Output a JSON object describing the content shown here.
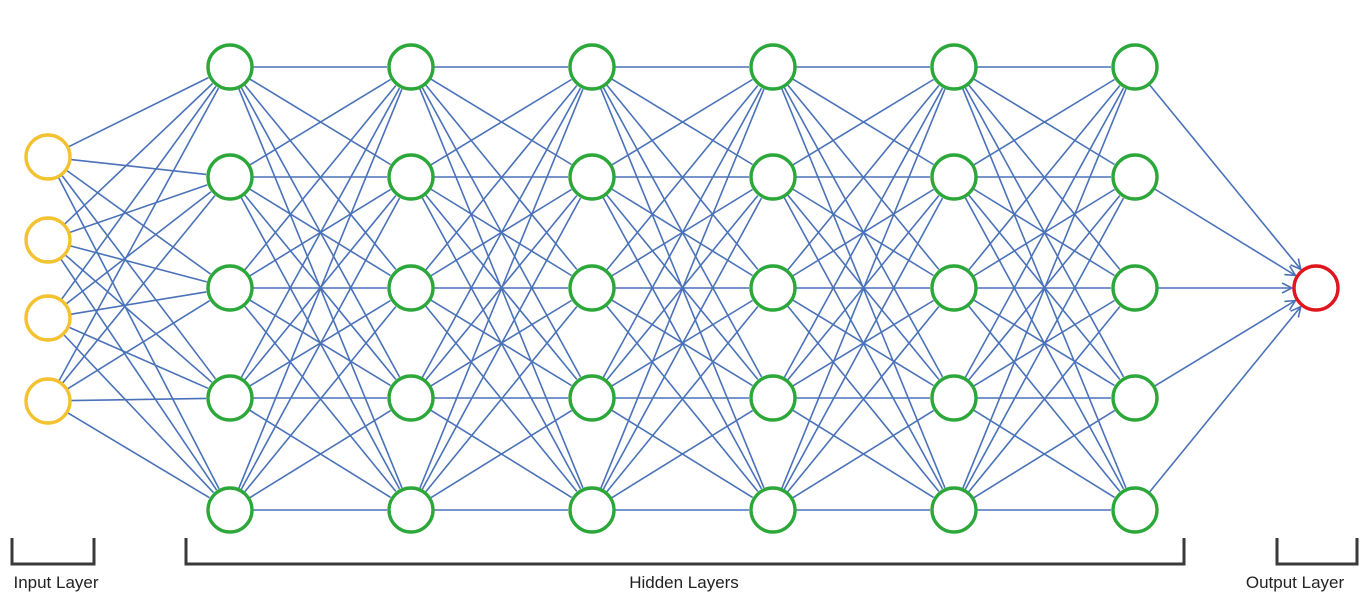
{
  "diagram": {
    "layers": [
      {
        "group": "input",
        "nodes": 4,
        "color": "#f2c230"
      },
      {
        "group": "hidden",
        "nodes": 5,
        "color": "#2ca73a"
      },
      {
        "group": "hidden",
        "nodes": 5,
        "color": "#2ca73a"
      },
      {
        "group": "hidden",
        "nodes": 5,
        "color": "#2ca73a"
      },
      {
        "group": "hidden",
        "nodes": 5,
        "color": "#2ca73a"
      },
      {
        "group": "hidden",
        "nodes": 5,
        "color": "#2ca73a"
      },
      {
        "group": "hidden",
        "nodes": 5,
        "color": "#2ca73a"
      },
      {
        "group": "output",
        "nodes": 1,
        "color": "#e0161c"
      }
    ],
    "edge_color": "#4a72b8",
    "last_layer_edges_have_arrows": true,
    "labels": {
      "input": "Input Layer",
      "hidden": "Hidden Layers",
      "output": "Output Layer"
    }
  }
}
